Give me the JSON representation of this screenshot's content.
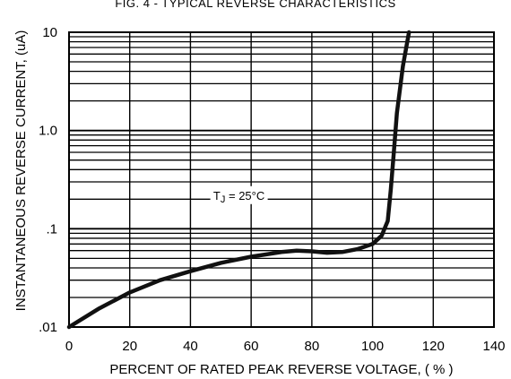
{
  "chart_data": {
    "type": "line",
    "title": "FIG. 4 - TYPICAL REVERSE CHARACTERISTICS",
    "xlabel": "PERCENT OF RATED PEAK REVERSE VOLTAGE, ( % )",
    "ylabel": "INSTANTANEOUS REVERSE CURRENT, (uA)",
    "x_scale": "linear",
    "y_scale": "log",
    "xlim": [
      0,
      140
    ],
    "ylim": [
      0.01,
      10
    ],
    "x_ticks": [
      0,
      20,
      40,
      60,
      80,
      100,
      120,
      140
    ],
    "x_tick_labels": [
      "0",
      "20",
      "40",
      "60",
      "80",
      "100",
      "120",
      "140"
    ],
    "y_ticks": [
      0.01,
      0.1,
      1,
      10
    ],
    "y_tick_labels": [
      ".01",
      ".1",
      "1.0",
      "10"
    ],
    "grid": true,
    "annotation": "T",
    "annotation_sub": "J",
    "annotation_rest": " = 25°C",
    "series": [
      {
        "x": [
          0,
          10,
          20,
          30,
          40,
          50,
          60,
          70,
          75,
          80,
          85,
          90,
          95,
          100,
          103,
          105,
          106,
          107,
          108,
          110,
          112
        ],
        "values": [
          0.01,
          0.0155,
          0.0225,
          0.03,
          0.037,
          0.045,
          0.052,
          0.058,
          0.06,
          0.059,
          0.057,
          0.058,
          0.062,
          0.07,
          0.085,
          0.12,
          0.25,
          0.6,
          1.5,
          4.5,
          12
        ],
        "color": "#111111"
      }
    ]
  }
}
